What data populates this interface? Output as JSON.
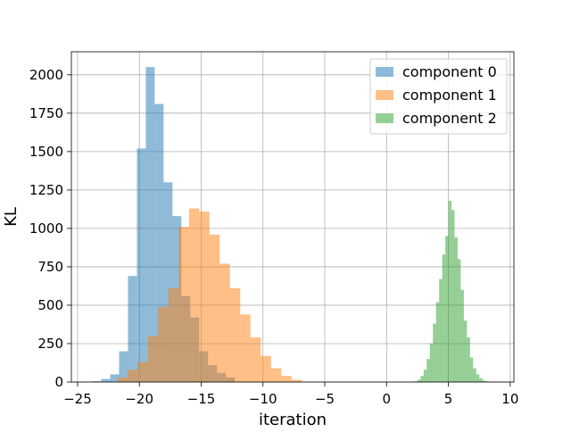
{
  "chart_data": {
    "type": "histogram",
    "title": "",
    "xlabel": "iteration",
    "ylabel": "KL",
    "xlim": [
      -25.5,
      10.3
    ],
    "ylim": [
      0,
      2150
    ],
    "xticks": [
      -25,
      -20,
      -15,
      -10,
      -5,
      0,
      5,
      10
    ],
    "yticks": [
      0,
      250,
      500,
      750,
      1000,
      1250,
      1500,
      1750,
      2000
    ],
    "grid": true,
    "legend_position": "top-right",
    "series": [
      {
        "name": "component 0",
        "color": "#1f77b4",
        "alpha": 0.5,
        "bin_width": 0.72,
        "bins": [
          {
            "x0": -23.8,
            "x1": -23.08,
            "count": 5
          },
          {
            "x0": -23.08,
            "x1": -22.36,
            "count": 20
          },
          {
            "x0": -22.36,
            "x1": -21.64,
            "count": 50
          },
          {
            "x0": -21.64,
            "x1": -20.92,
            "count": 200
          },
          {
            "x0": -20.92,
            "x1": -20.2,
            "count": 690
          },
          {
            "x0": -20.2,
            "x1": -19.48,
            "count": 1520
          },
          {
            "x0": -19.48,
            "x1": -18.76,
            "count": 2050
          },
          {
            "x0": -18.76,
            "x1": -18.04,
            "count": 1810
          },
          {
            "x0": -18.04,
            "x1": -17.32,
            "count": 1300
          },
          {
            "x0": -17.32,
            "x1": -16.6,
            "count": 1080
          },
          {
            "x0": -16.6,
            "x1": -15.88,
            "count": 560
          },
          {
            "x0": -15.88,
            "x1": -15.16,
            "count": 420
          },
          {
            "x0": -15.16,
            "x1": -14.44,
            "count": 200
          },
          {
            "x0": -14.44,
            "x1": -13.72,
            "count": 110
          },
          {
            "x0": -13.72,
            "x1": -13.0,
            "count": 60
          },
          {
            "x0": -13.0,
            "x1": -12.28,
            "count": 30
          }
        ]
      },
      {
        "name": "component 1",
        "color": "#ff7f0e",
        "alpha": 0.5,
        "bin_width": 0.83,
        "bins": [
          {
            "x0": -21.8,
            "x1": -20.97,
            "count": 30
          },
          {
            "x0": -20.97,
            "x1": -20.14,
            "count": 80
          },
          {
            "x0": -20.14,
            "x1": -19.31,
            "count": 130
          },
          {
            "x0": -19.31,
            "x1": -18.48,
            "count": 300
          },
          {
            "x0": -18.48,
            "x1": -17.65,
            "count": 490
          },
          {
            "x0": -17.65,
            "x1": -16.82,
            "count": 610
          },
          {
            "x0": -16.82,
            "x1": -15.99,
            "count": 1010
          },
          {
            "x0": -15.99,
            "x1": -15.16,
            "count": 1130
          },
          {
            "x0": -15.16,
            "x1": -14.33,
            "count": 1110
          },
          {
            "x0": -14.33,
            "x1": -13.5,
            "count": 960
          },
          {
            "x0": -13.5,
            "x1": -12.67,
            "count": 770
          },
          {
            "x0": -12.67,
            "x1": -11.84,
            "count": 610
          },
          {
            "x0": -11.84,
            "x1": -11.01,
            "count": 440
          },
          {
            "x0": -11.01,
            "x1": -10.18,
            "count": 290
          },
          {
            "x0": -10.18,
            "x1": -9.35,
            "count": 170
          },
          {
            "x0": -9.35,
            "x1": -8.52,
            "count": 90
          },
          {
            "x0": -8.52,
            "x1": -7.69,
            "count": 40
          },
          {
            "x0": -7.69,
            "x1": -6.86,
            "count": 15
          }
        ]
      },
      {
        "name": "component 2",
        "color": "#2ca02c",
        "alpha": 0.5,
        "bin_width": 0.25,
        "bins": [
          {
            "x0": 2.25,
            "x1": 2.5,
            "count": 5
          },
          {
            "x0": 2.5,
            "x1": 2.75,
            "count": 15
          },
          {
            "x0": 2.75,
            "x1": 3.0,
            "count": 40
          },
          {
            "x0": 3.0,
            "x1": 3.25,
            "count": 80
          },
          {
            "x0": 3.25,
            "x1": 3.5,
            "count": 150
          },
          {
            "x0": 3.5,
            "x1": 3.75,
            "count": 250
          },
          {
            "x0": 3.75,
            "x1": 4.0,
            "count": 380
          },
          {
            "x0": 4.0,
            "x1": 4.25,
            "count": 520
          },
          {
            "x0": 4.25,
            "x1": 4.5,
            "count": 670
          },
          {
            "x0": 4.5,
            "x1": 4.75,
            "count": 830
          },
          {
            "x0": 4.75,
            "x1": 5.0,
            "count": 950
          },
          {
            "x0": 5.0,
            "x1": 5.25,
            "count": 1180
          },
          {
            "x0": 5.25,
            "x1": 5.5,
            "count": 1120
          },
          {
            "x0": 5.5,
            "x1": 5.75,
            "count": 940
          },
          {
            "x0": 5.75,
            "x1": 6.0,
            "count": 800
          },
          {
            "x0": 6.0,
            "x1": 6.25,
            "count": 600
          },
          {
            "x0": 6.25,
            "x1": 6.5,
            "count": 400
          },
          {
            "x0": 6.5,
            "x1": 6.75,
            "count": 290
          },
          {
            "x0": 6.75,
            "x1": 7.0,
            "count": 160
          },
          {
            "x0": 7.0,
            "x1": 7.25,
            "count": 90
          },
          {
            "x0": 7.25,
            "x1": 7.5,
            "count": 50
          },
          {
            "x0": 7.5,
            "x1": 7.75,
            "count": 25
          },
          {
            "x0": 7.75,
            "x1": 8.0,
            "count": 10
          },
          {
            "x0": 8.0,
            "x1": 8.25,
            "count": 5
          }
        ]
      }
    ]
  }
}
